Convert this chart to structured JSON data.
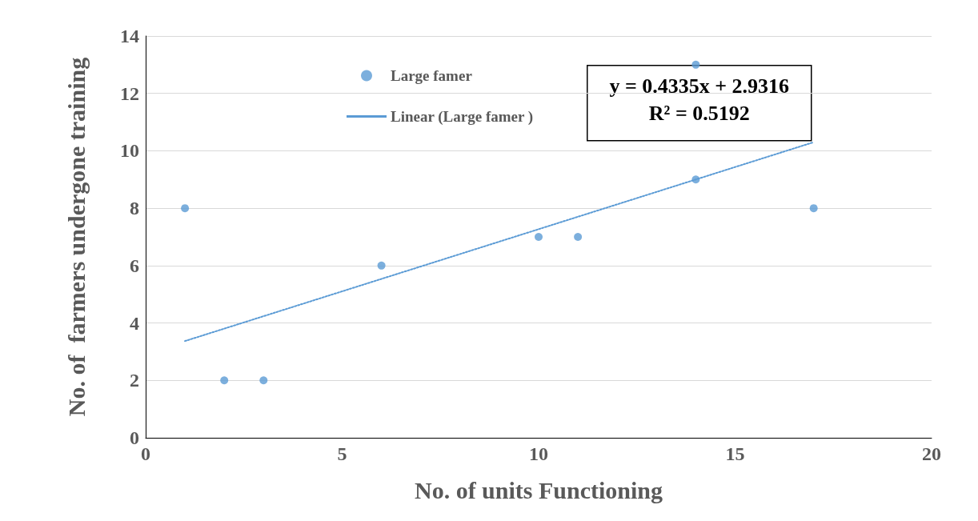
{
  "chart_data": {
    "type": "scatter",
    "xlabel": "No. of units Functioning",
    "ylabel": "No. of  farmers undergone training",
    "xlim": [
      0,
      20
    ],
    "xticks": [
      0,
      5,
      10,
      15,
      20
    ],
    "ylim": [
      0,
      14
    ],
    "yticks": [
      0,
      2,
      4,
      6,
      8,
      10,
      12,
      14
    ],
    "grid": "y",
    "legend": "top left",
    "annotations": [
      "y = 0.4335x + 2.9316",
      "R² = 0.5192"
    ],
    "series": [
      {
        "name": "Large famer",
        "marker": "circle",
        "color": "#5b9bd5",
        "x": [
          1,
          2,
          3,
          6,
          10,
          11,
          14,
          14,
          17
        ],
        "values": [
          8,
          2,
          2,
          6,
          7,
          7,
          13,
          9,
          8
        ]
      },
      {
        "name": "Linear (Large famer )",
        "type": "line",
        "marker": "none",
        "line_style": "dotted",
        "color": "#5b9bd5",
        "x": [
          1,
          17
        ],
        "values": [
          3.37,
          10.3
        ]
      }
    ]
  }
}
